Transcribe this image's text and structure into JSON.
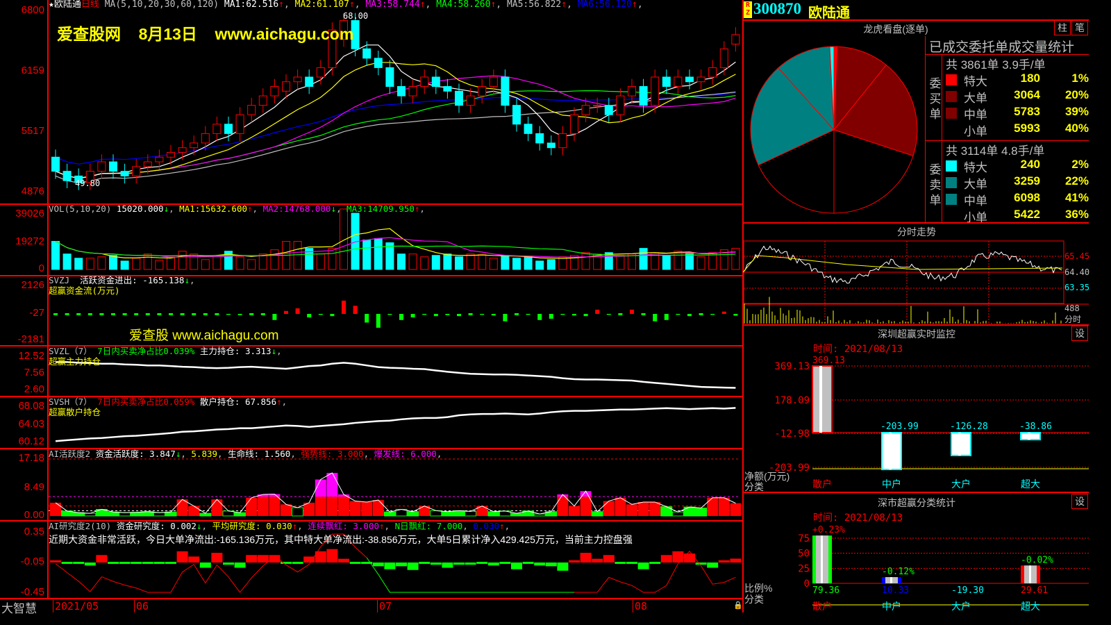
{
  "stock": {
    "badge": "RZ",
    "code": "300870",
    "name": "欧陆通"
  },
  "main": {
    "star": "★",
    "name": "欧陆通",
    "period": "日线",
    "ma_params": "MA(5,10,20,30,60,120)",
    "ma": [
      {
        "label": "MA1:",
        "value": "62.516",
        "arrow": "↑",
        "color": "#ffffff"
      },
      {
        "label": "MA2:",
        "value": "61.107",
        "arrow": "↑",
        "color": "#ffff00"
      },
      {
        "label": "MA3:",
        "value": "58.744",
        "arrow": "↑",
        "color": "#ff00ff"
      },
      {
        "label": "MA4:",
        "value": "58.260",
        "arrow": "↑",
        "color": "#00ff00"
      },
      {
        "label": "MA5:",
        "value": "56.822",
        "arrow": "↑",
        "color": "#c0c0c0"
      },
      {
        "label": "MA6:",
        "value": "56.120",
        "arrow": "↑",
        "color": "#0000ff"
      }
    ],
    "axis": [
      "6800",
      "6159",
      "5517",
      "4876"
    ],
    "high_label": "68.00",
    "low_label": "49.80",
    "watermark": [
      "爱查股网",
      "8月13日",
      "www.aichagu.com"
    ],
    "open": [
      52.5,
      51,
      50.5,
      49.8,
      51,
      52,
      51,
      50.5,
      51.5,
      52,
      52.5,
      53,
      53.5,
      54,
      55,
      56,
      55,
      57,
      58,
      59,
      59.5,
      60.5,
      61,
      61,
      62,
      65,
      67,
      64,
      63,
      62,
      60,
      59,
      60,
      61,
      60,
      59.5,
      58,
      59,
      60,
      61,
      58,
      56,
      55,
      54,
      53.5,
      55,
      57,
      58,
      58,
      57,
      59,
      60,
      58,
      61,
      60,
      61,
      60.5,
      61,
      62,
      64.5
    ],
    "close": [
      51,
      50,
      49.8,
      51,
      52,
      51,
      50.5,
      51.5,
      52,
      52.5,
      53,
      53.5,
      54,
      55,
      56,
      55,
      57,
      58,
      59,
      60,
      60.5,
      61,
      60,
      62,
      66,
      67,
      64,
      63,
      62,
      60,
      59,
      60,
      61,
      60,
      59.5,
      58,
      59,
      60,
      61,
      58,
      56,
      55,
      54,
      53.5,
      55,
      57,
      58,
      58,
      57,
      59,
      60,
      58,
      61,
      60,
      61,
      60.5,
      61,
      62,
      64,
      65.5
    ]
  },
  "vol": {
    "label": "VOL(5,10,20)",
    "value": "15020.000",
    "value_arrow": "↓",
    "ma": [
      {
        "label": "MA1:",
        "value": "15632.600",
        "arrow": "↑",
        "color": "#ffff00"
      },
      {
        "label": "MA2:",
        "value": "14768.000",
        "arrow": "↓",
        "color": "#ff00ff"
      },
      {
        "label": "MA3:",
        "value": "14709.950",
        "arrow": "↑",
        "color": "#00ff00"
      }
    ],
    "axis": [
      "39026",
      "19272",
      "0"
    ],
    "values": [
      20000,
      11000,
      8000,
      8000,
      9000,
      10000,
      6000,
      8000,
      11000,
      6500,
      9000,
      13000,
      11000,
      7000,
      10000,
      13000,
      9000,
      7000,
      11000,
      14000,
      20000,
      20000,
      15000,
      11000,
      15000,
      43000,
      40000,
      21000,
      22000,
      19000,
      11000,
      11000,
      9000,
      10000,
      11000,
      9000,
      11000,
      10500,
      8000,
      10000,
      8000,
      9000,
      6000,
      7000,
      9000,
      10000,
      12000,
      11000,
      12000,
      10000,
      11000,
      15000,
      12000,
      10000,
      13000,
      12000,
      9000,
      12000,
      14000,
      15020
    ]
  },
  "svzj": {
    "label": "SVZJ",
    "item": "活跃资金进出:",
    "value": "-165.138",
    "arrow": "↓",
    "sub": "超赢资金流(万元)",
    "watermark": "爱查股 www.aichagu.com",
    "axis": [
      "2126",
      "-27",
      "-2181"
    ],
    "values": [
      -50,
      -40,
      -30,
      -45,
      -50,
      -40,
      -60,
      -30,
      -40,
      -50,
      -30,
      -40,
      -60,
      -80,
      -50,
      -100,
      -120,
      -50,
      -40,
      -500,
      200,
      400,
      -300,
      -100,
      -200,
      1000,
      600,
      -700,
      -1100,
      -100,
      -500,
      -300,
      -100,
      -200,
      -120,
      -200,
      -80,
      -100,
      -150,
      -600,
      -50,
      -100,
      -500,
      -400,
      -100,
      -150,
      -200,
      300,
      -100,
      -50,
      300,
      -50,
      -600,
      -500,
      -100,
      -200,
      -80,
      -100,
      150,
      -165
    ]
  },
  "svzl": {
    "label": "SVZL（7）",
    "ratio": "7日内买卖净占比0.039%",
    "item": "主力持仓:",
    "value": "3.313",
    "arrow": "↓",
    "sub": "超赢主力持仓",
    "axis": [
      "12.52",
      "7.56",
      "2.60"
    ],
    "values": [
      11,
      11,
      10.8,
      10.7,
      10.5,
      10.5,
      10.3,
      10.2,
      10,
      10,
      9.8,
      9.6,
      9.5,
      9.3,
      9.2,
      9.3,
      9.5,
      9.6,
      9.4,
      9.2,
      9,
      9.4,
      9.8,
      10,
      10.5,
      10.8,
      10.5,
      10,
      9.5,
      9.3,
      9.2,
      9,
      8.9,
      8.5,
      8.1,
      7.8,
      7.5,
      7.4,
      7.3,
      7.3,
      7.2,
      7,
      6.8,
      6.6,
      6.2,
      5.9,
      5.8,
      5.8,
      5.7,
      5.6,
      5.5,
      5.1,
      4.8,
      4.5,
      4.2,
      3.9,
      3.6,
      3.5,
      3.4,
      3.313
    ]
  },
  "svsh": {
    "label": "SVSH（7）",
    "ratio": "7日内买卖净占比0.059%",
    "item": "散户持仓:",
    "value": "67.856",
    "arrow": "↑",
    "sub": "超赢散户持仓",
    "axis": [
      "68.08",
      "64.03",
      "60.12"
    ],
    "values": [
      60.4,
      60.6,
      60.8,
      61,
      61.1,
      61.3,
      61.5,
      61.6,
      61.8,
      62,
      62.2,
      62.5,
      62.6,
      62.8,
      63,
      63.1,
      63.3,
      63.3,
      63.5,
      63.7,
      63.9,
      63.8,
      63.6,
      63.8,
      64,
      64.2,
      64.5,
      64.7,
      64.9,
      65,
      65.3,
      65.5,
      65.6,
      65.6,
      65.8,
      66.2,
      66.4,
      66.5,
      66.5,
      66.6,
      66.5,
      66.4,
      66.6,
      66.9,
      67.1,
      67.2,
      67.2,
      67.3,
      67.4,
      67.5,
      67.5,
      67.6,
      67.7,
      67.8,
      67.7,
      67.6,
      67.7,
      67.8,
      67.7,
      67.856
    ]
  },
  "ai_act": {
    "label": "AI活跃度2",
    "item": "资金活跃度:",
    "value": "3.847",
    "arrow": "↓",
    "v2": "5.839",
    "life_label": "生命线:",
    "life": "1.560",
    "strong_label": "强势线:",
    "strong": "3.000",
    "burst_label": "爆发线:",
    "burst": "6.000",
    "axis": [
      "17.18",
      "8.49",
      "0.00"
    ],
    "values": [
      4,
      1.5,
      1,
      0.8,
      2,
      1.2,
      1,
      1.1,
      1.3,
      1,
      1.2,
      5,
      3,
      0.8,
      5,
      1.5,
      1,
      5.5,
      6.5,
      6.6,
      3.5,
      2.5,
      4,
      11,
      13,
      6.5,
      4.5,
      4.2,
      4.8,
      1.2,
      2,
      1.3,
      3,
      1.6,
      1.3,
      1.6,
      1.4,
      3,
      1.3,
      1.5,
      0.8,
      1.5,
      0.6,
      1.3,
      6.5,
      3,
      7.5,
      1.3,
      4.5,
      5.5,
      3.5,
      4.2,
      4.2,
      2.8,
      1.2,
      2.7,
      2.4,
      5.5,
      5.5,
      3.847
    ]
  },
  "ai_res": {
    "label": "AI研究度2(10)",
    "item": "资金研究度:",
    "value": "0.002",
    "arrow": "↓",
    "avg_label": "平均研究度:",
    "avg": "0.030",
    "red_label": "连续飘红:",
    "red": "3.000",
    "nred_label": "N日飘红:",
    "nred": "7.000",
    "v5": "0.030",
    "comment": "近期大资金非常活跃，今日大单净流出:-165.136万元，其中特大单净流出:-38.856万元，大单5日累计净入429.425万元，当前主力控盘强",
    "axis": [
      "0.35",
      "-0.05",
      "-0.45"
    ],
    "values": [
      -0.03,
      -0.06,
      -0.07,
      -0.09,
      0.05,
      -0.05,
      -0.05,
      -0.05,
      -0.07,
      -0.05,
      -0.05,
      0.1,
      0.03,
      -0.12,
      0.08,
      -0.08,
      -0.12,
      0.05,
      0.05,
      0.05,
      -0.05,
      -0.05,
      0.03,
      0.1,
      0.13,
      0,
      -0.05,
      -0.05,
      -0.1,
      -0.14,
      -0.1,
      -0.15,
      -0.05,
      -0.08,
      -0.12,
      -0.08,
      -0.08,
      -0.05,
      -0.09,
      -0.05,
      -0.14,
      -0.05,
      -0.09,
      -0.1,
      -0.16,
      -0.02,
      0.08,
      0,
      0.05,
      -0.05,
      -0.05,
      -0.14,
      -0.05,
      0.05,
      0.1,
      0.07,
      -0.08,
      -0.12,
      -0.02,
      0.002
    ]
  },
  "footer": {
    "app": "大智慧",
    "dates": [
      "2021/05",
      "06",
      "07",
      "08"
    ]
  },
  "longhu": {
    "title": "龙虎看盘(逐单)",
    "btn_bar": "柱",
    "btn_tick": "笔",
    "stat_title": "已成交委托单成交量统计",
    "buy": {
      "side": "委买单",
      "summary": "共 3861单 3.9手/单",
      "rows": [
        {
          "label": "特大",
          "value": "180",
          "pct": "1%",
          "color": "#ff0000"
        },
        {
          "label": "大单",
          "value": "3064",
          "pct": "20%",
          "color": "#800000"
        },
        {
          "label": "中单",
          "value": "5783",
          "pct": "39%",
          "color": "#800000"
        },
        {
          "label": "小单",
          "value": "5993",
          "pct": "40%",
          "color": "#000000"
        }
      ]
    },
    "sell": {
      "side": "委卖单",
      "summary": "共 3114单 4.8手/单",
      "rows": [
        {
          "label": "特大",
          "value": "240",
          "pct": "2%",
          "color": "#00ffff"
        },
        {
          "label": "大单",
          "value": "3259",
          "pct": "22%",
          "color": "#008080"
        },
        {
          "label": "中单",
          "value": "6098",
          "pct": "41%",
          "color": "#008080"
        },
        {
          "label": "小单",
          "value": "5422",
          "pct": "36%",
          "color": "#000000"
        }
      ]
    }
  },
  "intraday": {
    "title": "分时走势",
    "axis": [
      "65.45",
      "64.40",
      "63.35"
    ],
    "vol_label": "488",
    "vol_unit": "分时"
  },
  "sz_monitor": {
    "title": "深圳超赢实时监控",
    "btn": "设",
    "time": "时间: 2021/08/13",
    "axis": [
      "369.13",
      "178.09",
      "-12.98",
      "-203.99"
    ],
    "unit": "净额(万元)",
    "cat_label": "分类",
    "categories": [
      "散户",
      "中户",
      "大户",
      "超大"
    ],
    "values": [
      369.13,
      -203.99,
      -126.28,
      -38.86
    ],
    "value_labels": [
      "369.13",
      "-203.99",
      "-126.28",
      "-38.86"
    ]
  },
  "sz_class": {
    "title": "深市超赢分类统计",
    "btn": "设",
    "time": "时间: 2021/08/13",
    "axis": [
      "75",
      "50",
      "25",
      "0"
    ],
    "unit": "比例%",
    "cat_label": "分类",
    "categories": [
      "散户",
      "中户",
      "大户",
      "超大"
    ],
    "values": [
      79.36,
      10.33,
      -19.3,
      29.61
    ],
    "value_labels": [
      "79.36",
      "10.33",
      "-19.30",
      "29.61"
    ],
    "pct_labels": [
      "+0.23%",
      "-0.12%",
      "",
      "-0.02%"
    ]
  }
}
